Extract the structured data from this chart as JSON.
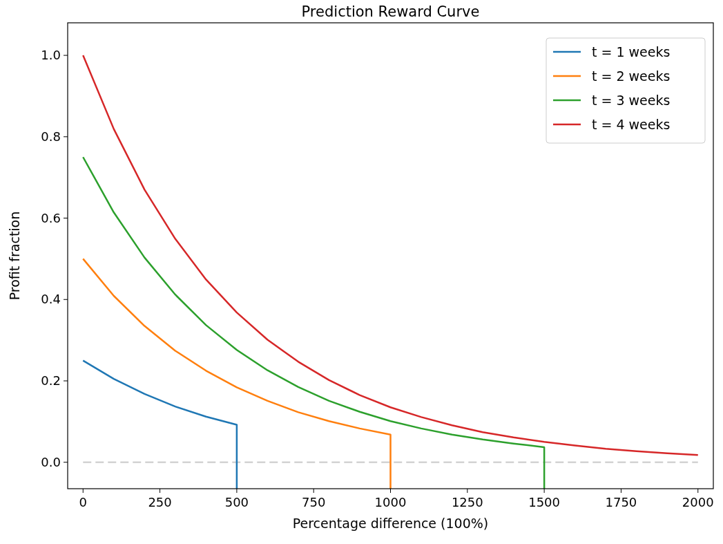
{
  "chart_data": {
    "type": "line",
    "title": "Prediction Reward Curve",
    "xlabel": "Percentage difference (100%)",
    "ylabel": "Profit fraction",
    "xlim": [
      -50,
      2050
    ],
    "ylim": [
      -0.065,
      1.08
    ],
    "xticks": [
      0,
      250,
      500,
      750,
      1000,
      1250,
      1500,
      1750,
      2000
    ],
    "yticks": [
      {
        "value": 0,
        "label": "0.0"
      },
      {
        "value": 0.2,
        "label": "0.2"
      },
      {
        "value": 0.4,
        "label": "0.4"
      },
      {
        "value": 0.6,
        "label": "0.6"
      },
      {
        "value": 0.8,
        "label": "0.8"
      },
      {
        "value": 1,
        "label": "1.0"
      }
    ],
    "grid": false,
    "legend": "top right",
    "line_style": "solid",
    "ref_lines": [
      {
        "axis": "y",
        "value": 0,
        "color": "#d3d3d3",
        "line_style": "dashed"
      }
    ],
    "series": [
      {
        "name": "t = 1 weeks",
        "color": "#1f77b4",
        "x": [
          0,
          100,
          200,
          300,
          400,
          500,
          500
        ],
        "values": [
          0.25,
          0.205,
          0.168,
          0.137,
          0.112,
          0.092,
          -0.065
        ]
      },
      {
        "name": "t = 2 weeks",
        "color": "#ff7f0e",
        "x": [
          0,
          100,
          200,
          300,
          400,
          500,
          600,
          700,
          800,
          900,
          1000,
          1000
        ],
        "values": [
          0.5,
          0.409,
          0.335,
          0.274,
          0.225,
          0.184,
          0.151,
          0.123,
          0.101,
          0.083,
          0.068,
          -0.065
        ]
      },
      {
        "name": "t = 3 weeks",
        "color": "#2ca02c",
        "x": [
          0,
          100,
          200,
          300,
          400,
          500,
          600,
          700,
          800,
          900,
          1000,
          1100,
          1200,
          1300,
          1400,
          1500,
          1500
        ],
        "values": [
          0.75,
          0.614,
          0.503,
          0.412,
          0.337,
          0.276,
          0.226,
          0.185,
          0.151,
          0.124,
          0.101,
          0.083,
          0.068,
          0.056,
          0.046,
          0.037,
          -0.065
        ]
      },
      {
        "name": "t = 4 weeks",
        "color": "#d62728",
        "x": [
          0,
          100,
          200,
          300,
          400,
          500,
          600,
          700,
          800,
          900,
          1000,
          1100,
          1200,
          1300,
          1400,
          1500,
          1600,
          1700,
          1800,
          1900,
          2000
        ],
        "values": [
          1,
          0.819,
          0.67,
          0.549,
          0.449,
          0.368,
          0.301,
          0.247,
          0.202,
          0.165,
          0.135,
          0.111,
          0.091,
          0.074,
          0.061,
          0.05,
          0.041,
          0.033,
          0.027,
          0.022,
          0.018
        ]
      }
    ]
  }
}
